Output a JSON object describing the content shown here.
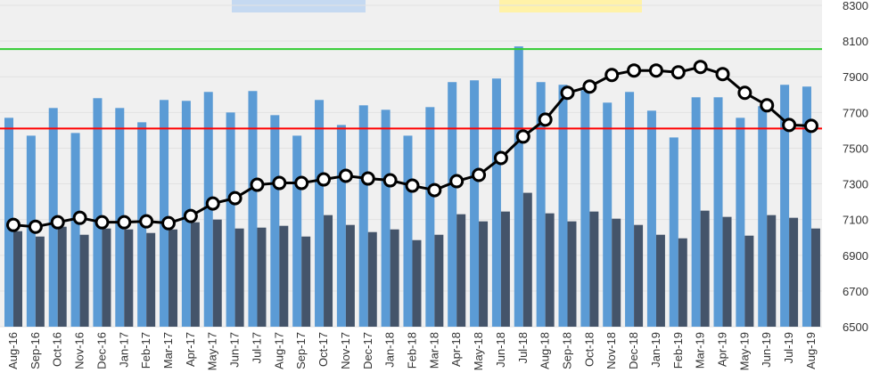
{
  "chart_data": {
    "type": "bar-line",
    "categories": [
      "Aug-16",
      "Sep-16",
      "Oct-16",
      "Nov-16",
      "Dec-16",
      "Jan-17",
      "Feb-17",
      "Mar-17",
      "Apr-17",
      "May-17",
      "Jun-17",
      "Jul-17",
      "Aug-17",
      "Sep-17",
      "Oct-17",
      "Nov-17",
      "Dec-17",
      "Jan-18",
      "Feb-18",
      "Mar-18",
      "Apr-18",
      "May-18",
      "Jun-18",
      "Jul-18",
      "Aug-18",
      "Sep-18",
      "Oct-18",
      "Nov-18",
      "Dec-18",
      "Jan-19",
      "Feb-19",
      "Mar-19",
      "Apr-19",
      "May-19",
      "Jun-19",
      "Jul-19",
      "Aug-19"
    ],
    "series": [
      {
        "type": "bar",
        "color": "#5b9bd5",
        "values": [
          7670,
          7570,
          7725,
          7585,
          7780,
          7725,
          7645,
          7770,
          7765,
          7815,
          7700,
          7820,
          7685,
          7570,
          7770,
          7630,
          7740,
          7715,
          7570,
          7730,
          7870,
          7880,
          7890,
          8070,
          7870,
          7855,
          7825,
          7755,
          7815,
          7710,
          7560,
          7785,
          7785,
          7670,
          7735,
          7855,
          7845
        ]
      },
      {
        "type": "bar",
        "color": "#44546a",
        "values": [
          7035,
          7005,
          7060,
          7015,
          7050,
          7045,
          7025,
          7045,
          7085,
          7100,
          7050,
          7055,
          7065,
          7005,
          7125,
          7070,
          7030,
          7045,
          6985,
          7015,
          7130,
          7090,
          7145,
          7250,
          7135,
          7090,
          7145,
          7105,
          7070,
          7015,
          6995,
          7150,
          7115,
          7010,
          7125,
          7110,
          7050
        ]
      },
      {
        "type": "line",
        "color": "#000000",
        "values": [
          7070,
          7060,
          7085,
          7110,
          7085,
          7085,
          7090,
          7080,
          7120,
          7190,
          7220,
          7295,
          7305,
          7305,
          7325,
          7345,
          7330,
          7320,
          7290,
          7265,
          7315,
          7350,
          7445,
          7565,
          7660,
          7810,
          7845,
          7910,
          7935,
          7935,
          7925,
          7955,
          7915,
          7810,
          7740,
          7630,
          7625
        ]
      }
    ],
    "reference_lines": [
      {
        "value": 8055,
        "color": "#33cc33"
      },
      {
        "value": 7610,
        "color": "#ff0000"
      }
    ],
    "ylim": [
      6500,
      8300
    ],
    "yticks": [
      6500,
      6700,
      6900,
      7100,
      7300,
      7500,
      7700,
      7900,
      8100,
      8300
    ],
    "y_axis_side": "right",
    "grid": true
  }
}
